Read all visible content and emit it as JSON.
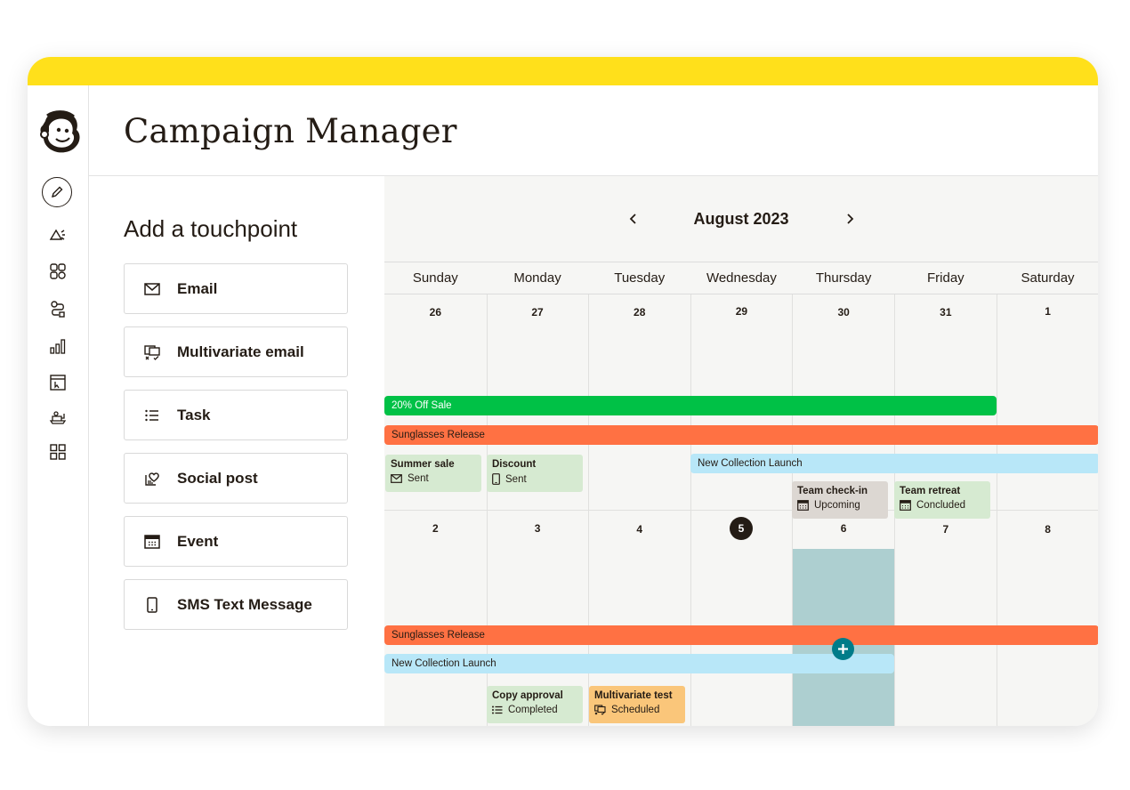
{
  "colors": {
    "top_bar": "#ffe01b",
    "green_bar": "#00c146",
    "orange_bar": "#ff7143",
    "blue_bar": "#b8e7f8",
    "card_green": "#d6ead1",
    "card_gray": "#dcd7d2",
    "card_orange": "#fac67a",
    "selected_column": "#adcfd0",
    "add_button": "#007c89",
    "text": "#241c15"
  },
  "sidebar": {
    "logo_icon": "mailchimp-freddie-icon",
    "items": [
      {
        "icon": "pencil-icon",
        "name": "create"
      },
      {
        "icon": "megaphone-icon",
        "name": "campaigns"
      },
      {
        "icon": "audience-icon",
        "name": "audience"
      },
      {
        "icon": "automations-icon",
        "name": "automations"
      },
      {
        "icon": "analytics-icon",
        "name": "analytics"
      },
      {
        "icon": "website-icon",
        "name": "website"
      },
      {
        "icon": "content-icon",
        "name": "content"
      },
      {
        "icon": "integrations-icon",
        "name": "integrations"
      }
    ]
  },
  "header": {
    "title": "Campaign Manager"
  },
  "touchpoints": {
    "title": "Add a touchpoint",
    "items": [
      {
        "label": "Email",
        "icon": "envelope-icon"
      },
      {
        "label": "Multivariate email",
        "icon": "multivariate-icon"
      },
      {
        "label": "Task",
        "icon": "list-icon"
      },
      {
        "label": "Social post",
        "icon": "social-heart-icon"
      },
      {
        "label": "Event",
        "icon": "calendar-icon"
      },
      {
        "label": "SMS Text Message",
        "icon": "phone-icon"
      }
    ]
  },
  "calendar": {
    "month_label": "August 2023",
    "prev_icon": "chevron-left-icon",
    "next_icon": "chevron-right-icon",
    "weekdays": [
      "Sunday",
      "Monday",
      "Tuesday",
      "Wednesday",
      "Thursday",
      "Friday",
      "Saturday"
    ],
    "weeks": [
      {
        "days": [
          "26",
          "27",
          "28",
          "29",
          "30",
          "31",
          "1"
        ]
      },
      {
        "days": [
          "2",
          "3",
          "4",
          "5",
          "6",
          "7",
          "8"
        ]
      }
    ],
    "today": "5",
    "selected_day": "6",
    "add_icon": "plus-circle-icon",
    "bars": [
      {
        "label": "20% Off Sale",
        "color": "green"
      },
      {
        "label": "Sunglasses Release",
        "color": "orange"
      },
      {
        "label": "New Collection Launch",
        "color": "blue"
      },
      {
        "label": "Sunglasses Release",
        "color": "orange"
      },
      {
        "label": "New Collection Launch",
        "color": "blue"
      }
    ],
    "cards": [
      {
        "title": "Summer sale",
        "status": "Sent",
        "icon": "envelope-icon"
      },
      {
        "title": "Discount",
        "status": "Sent",
        "icon": "phone-icon"
      },
      {
        "title": "Team check-in",
        "status": "Upcoming",
        "icon": "calendar-icon"
      },
      {
        "title": "Team retreat",
        "status": "Concluded",
        "icon": "calendar-icon"
      },
      {
        "title": "Copy approval",
        "status": "Completed",
        "icon": "list-icon"
      },
      {
        "title": "Multivariate test",
        "status": "Scheduled",
        "icon": "multivariate-icon"
      }
    ]
  }
}
